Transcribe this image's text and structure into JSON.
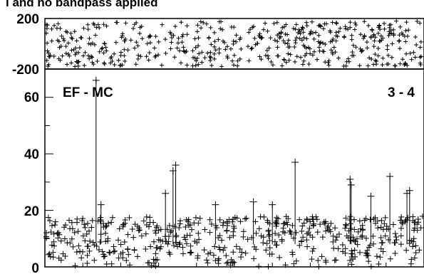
{
  "title_fragment": "l and no bandpass applied",
  "chart_data": [
    {
      "panel": "phase",
      "type": "scatter",
      "marker": "+",
      "ylim": [
        -200,
        200
      ],
      "yticks": [
        "200",
        "-200"
      ],
      "color": "#000000",
      "n_points": 520,
      "y_range_covered": [
        -180,
        180
      ],
      "note_values": "phase values appear uniformly distributed across -180 to 180"
    },
    {
      "panel": "amplitude",
      "type": "scatter",
      "marker": "+",
      "ylim": [
        0,
        70
      ],
      "yticks": [
        "0",
        "20",
        "40",
        "60"
      ],
      "baseline_label": "EF - MC",
      "baseline_id": "3 - 4",
      "color": "#000000",
      "n_points": 520,
      "bulk_range": [
        0,
        18
      ],
      "outliers": [
        {
          "x": 0.135,
          "y": 66
        },
        {
          "x": 0.148,
          "y": 22
        },
        {
          "x": 0.345,
          "y": 36
        },
        {
          "x": 0.338,
          "y": 34
        },
        {
          "x": 0.318,
          "y": 26
        },
        {
          "x": 0.66,
          "y": 37
        },
        {
          "x": 0.805,
          "y": 31
        },
        {
          "x": 0.808,
          "y": 29
        },
        {
          "x": 0.91,
          "y": 32
        },
        {
          "x": 0.955,
          "y": 26
        },
        {
          "x": 0.962,
          "y": 27
        },
        {
          "x": 0.86,
          "y": 25
        },
        {
          "x": 0.55,
          "y": 23
        },
        {
          "x": 0.6,
          "y": 22
        },
        {
          "x": 0.45,
          "y": 22
        }
      ]
    }
  ]
}
